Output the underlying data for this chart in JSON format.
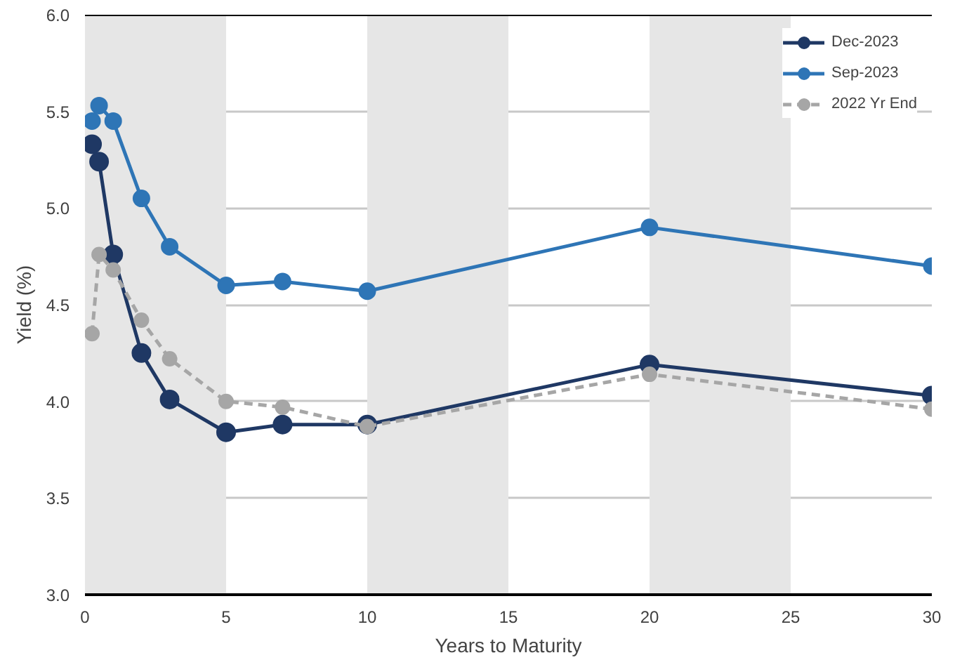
{
  "chart_data": {
    "type": "line",
    "xlabel": "Years to Maturity",
    "ylabel": "Yield (%)",
    "x": [
      0.25,
      0.5,
      1,
      2,
      3,
      5,
      7,
      10,
      20,
      30
    ],
    "xlim": [
      0,
      30
    ],
    "xticks": [
      0,
      5,
      10,
      15,
      20,
      25,
      30
    ],
    "ylim": [
      3.0,
      6.0
    ],
    "yticks": [
      {
        "value": 3.0,
        "label": "3.0"
      },
      {
        "value": 3.5,
        "label": "3.5"
      },
      {
        "value": 4.0,
        "label": "4.0"
      },
      {
        "value": 4.5,
        "label": "4.5"
      },
      {
        "value": 5.0,
        "label": "5.0"
      },
      {
        "value": 5.5,
        "label": "5.5"
      },
      {
        "value": 6.0,
        "label": "6.0"
      }
    ],
    "grid": "y",
    "legend": "top right",
    "marker": "circle",
    "bands": [
      {
        "axis": "x",
        "from": 0,
        "to": 5,
        "color": "#e6e6e6"
      },
      {
        "axis": "x",
        "from": 10,
        "to": 15,
        "color": "#e6e6e6"
      },
      {
        "axis": "x",
        "from": 20,
        "to": 25,
        "color": "#e6e6e6"
      }
    ],
    "series": [
      {
        "name": "Dec-2023",
        "color": "#1f3864",
        "line_style": "solid",
        "values": [
          5.33,
          5.24,
          4.76,
          4.25,
          4.01,
          3.84,
          3.88,
          3.88,
          4.19,
          4.03
        ]
      },
      {
        "name": "Sep-2023",
        "color": "#2e75b6",
        "line_style": "solid",
        "values": [
          5.45,
          5.53,
          5.45,
          5.05,
          4.8,
          4.6,
          4.62,
          4.57,
          4.9,
          4.7
        ]
      },
      {
        "name": "2022 Yr End",
        "color": "#a6a6a6",
        "line_style": "dashed",
        "values": [
          4.35,
          4.76,
          4.68,
          4.42,
          4.22,
          4.0,
          3.97,
          3.87,
          4.14,
          3.96
        ]
      }
    ]
  }
}
